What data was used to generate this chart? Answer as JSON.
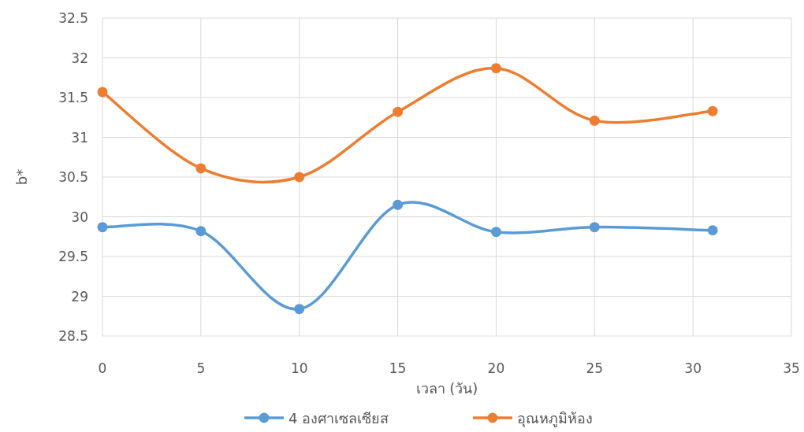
{
  "chart_data": {
    "type": "line",
    "xlabel": "เวลา (วัน)",
    "ylabel": "b*",
    "x": [
      0,
      5,
      10,
      15,
      20,
      25,
      31
    ],
    "xlim": [
      0,
      35
    ],
    "xticks": [
      0,
      5,
      10,
      15,
      20,
      25,
      30,
      35
    ],
    "ylim": [
      28.5,
      32.5
    ],
    "yticks": [
      28.5,
      29,
      29.5,
      30,
      30.5,
      31,
      31.5,
      32,
      32.5
    ],
    "grid": true,
    "legend": "bottom",
    "marker": "circle",
    "series": [
      {
        "name": "4 องศาเซลเซียส",
        "color": "#5b9bd5",
        "values": [
          29.87,
          29.82,
          28.84,
          30.15,
          29.81,
          29.87,
          29.83
        ]
      },
      {
        "name": "อุณหภูมิห้อง",
        "color": "#ed7d31",
        "values": [
          31.57,
          30.61,
          30.5,
          31.32,
          31.87,
          31.21,
          31.33
        ]
      }
    ]
  }
}
